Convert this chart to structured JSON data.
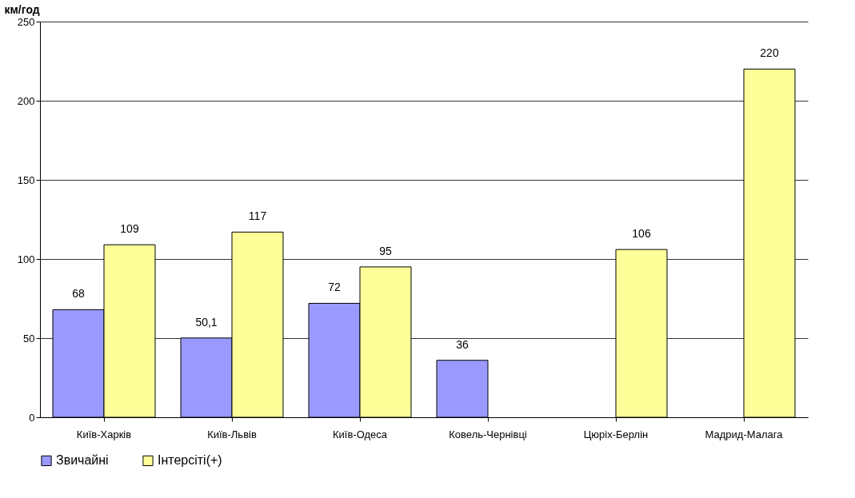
{
  "chart_data": {
    "type": "bar",
    "ylabel": "км/год",
    "categories": [
      "Київ-Харків",
      "Київ-Львів",
      "Київ-Одеса",
      "Ковель-Чернівці",
      "Цюріх-Берлін",
      "Мадрид-Малага"
    ],
    "series": [
      {
        "name": "Звичайні",
        "color": "#9999ff",
        "values": [
          68,
          50.1,
          72,
          36,
          null,
          null
        ],
        "value_labels": [
          "68",
          "50,1",
          "72",
          "36",
          null,
          null
        ]
      },
      {
        "name": "Інтерсіті(+)",
        "color": "#ffff99",
        "values": [
          109,
          117,
          95,
          null,
          106,
          220
        ],
        "value_labels": [
          "109",
          "117",
          "95",
          null,
          "106",
          "220"
        ]
      }
    ],
    "ylim": [
      0,
      250
    ],
    "yticks": [
      0,
      50,
      100,
      150,
      200,
      250
    ],
    "grid": "y",
    "legend": "bottom"
  }
}
